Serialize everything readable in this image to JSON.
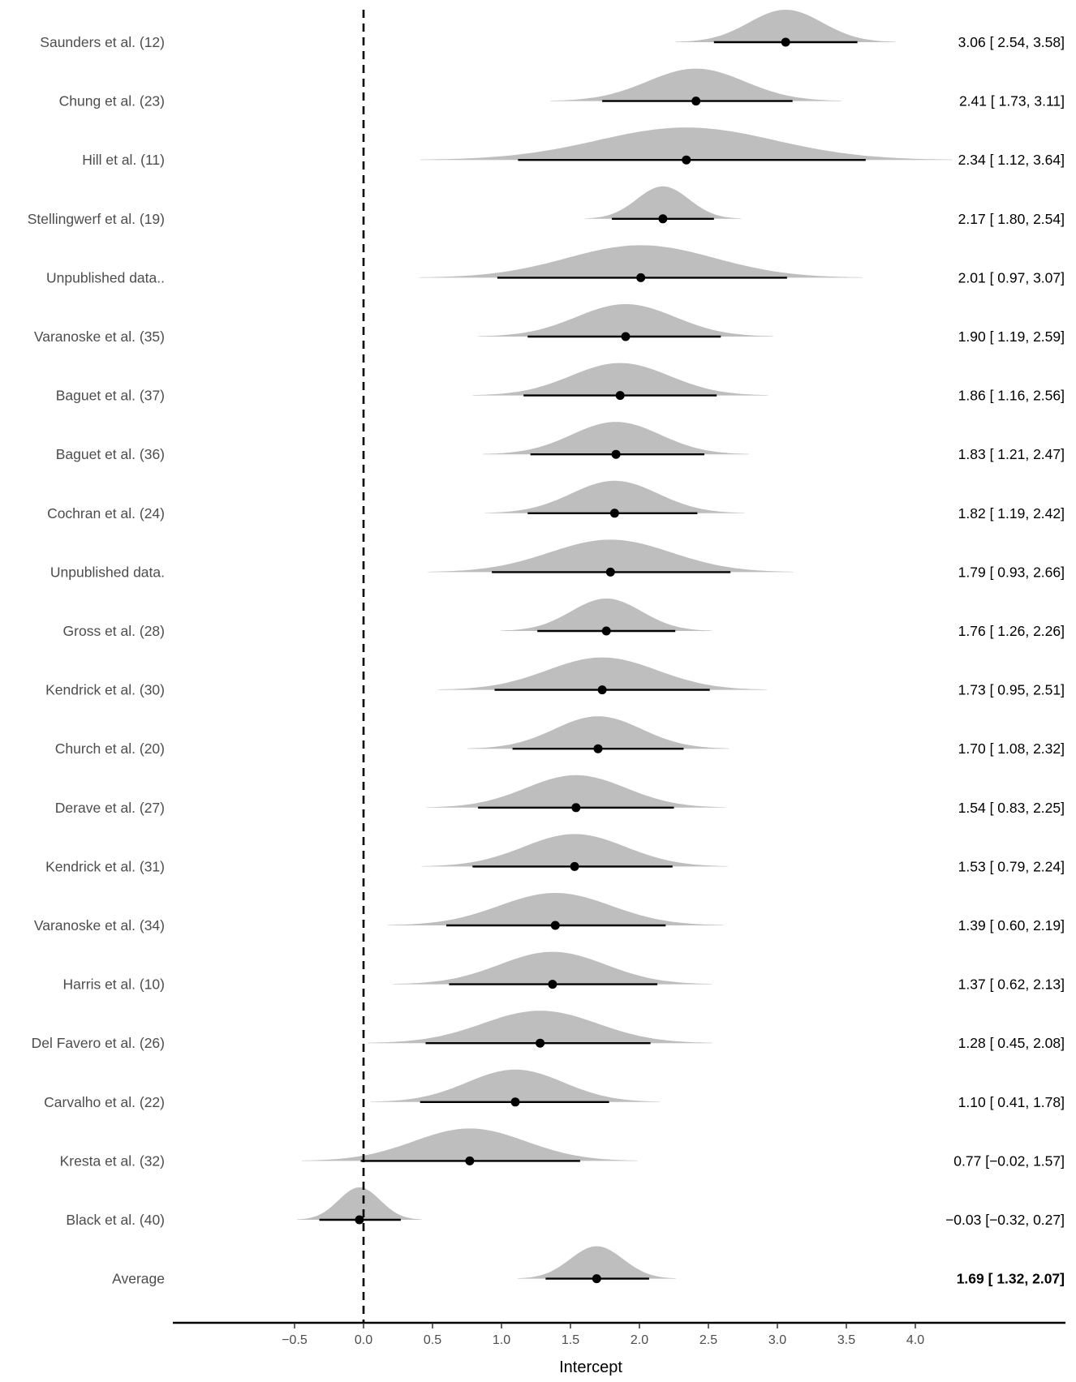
{
  "chart_data": {
    "type": "forest-density",
    "xlabel": "Intercept",
    "xlim": [
      -1.4,
      5.15
    ],
    "xticks": [
      -0.5,
      0.0,
      0.5,
      1.0,
      1.5,
      2.0,
      2.5,
      3.0,
      3.5,
      4.0
    ],
    "xtick_labels": [
      "−0.5",
      "0.0",
      "0.5",
      "1.0",
      "1.5",
      "2.0",
      "2.5",
      "3.0",
      "3.5",
      "4.0"
    ],
    "reference_line": 0,
    "colors": {
      "density": "#bebebe",
      "interval": "#000000",
      "reference": "#000000"
    },
    "rows": [
      {
        "study": "Saunders et al. (12)",
        "estimate": 3.06,
        "lower": 2.54,
        "upper": 3.58,
        "label": "3.06 [ 2.54, 3.58]"
      },
      {
        "study": "Chung et al. (23)",
        "estimate": 2.41,
        "lower": 1.73,
        "upper": 3.11,
        "label": "2.41 [ 1.73, 3.11]"
      },
      {
        "study": "Hill et al. (11)",
        "estimate": 2.34,
        "lower": 1.12,
        "upper": 3.64,
        "label": "2.34 [ 1.12, 3.64]"
      },
      {
        "study": "Stellingwerf et al. (19)",
        "estimate": 2.17,
        "lower": 1.8,
        "upper": 2.54,
        "label": "2.17 [ 1.80, 2.54]"
      },
      {
        "study": "Unpublished data..",
        "estimate": 2.01,
        "lower": 0.97,
        "upper": 3.07,
        "label": "2.01 [ 0.97, 3.07]"
      },
      {
        "study": "Varanoske et al. (35)",
        "estimate": 1.9,
        "lower": 1.19,
        "upper": 2.59,
        "label": "1.90 [ 1.19, 2.59]"
      },
      {
        "study": "Baguet et al. (37)",
        "estimate": 1.86,
        "lower": 1.16,
        "upper": 2.56,
        "label": "1.86 [ 1.16, 2.56]"
      },
      {
        "study": "Baguet et al. (36)",
        "estimate": 1.83,
        "lower": 1.21,
        "upper": 2.47,
        "label": "1.83 [ 1.21, 2.47]"
      },
      {
        "study": "Cochran et al. (24)",
        "estimate": 1.82,
        "lower": 1.19,
        "upper": 2.42,
        "label": "1.82 [ 1.19, 2.42]"
      },
      {
        "study": "Unpublished data.",
        "estimate": 1.79,
        "lower": 0.93,
        "upper": 2.66,
        "label": "1.79 [ 0.93, 2.66]"
      },
      {
        "study": "Gross et al. (28)",
        "estimate": 1.76,
        "lower": 1.26,
        "upper": 2.26,
        "label": "1.76 [ 1.26, 2.26]"
      },
      {
        "study": "Kendrick et al. (30)",
        "estimate": 1.73,
        "lower": 0.95,
        "upper": 2.51,
        "label": "1.73 [ 0.95, 2.51]"
      },
      {
        "study": "Church et al. (20)",
        "estimate": 1.7,
        "lower": 1.08,
        "upper": 2.32,
        "label": "1.70 [ 1.08, 2.32]"
      },
      {
        "study": "Derave et al. (27)",
        "estimate": 1.54,
        "lower": 0.83,
        "upper": 2.25,
        "label": "1.54 [ 0.83, 2.25]"
      },
      {
        "study": "Kendrick et al. (31)",
        "estimate": 1.53,
        "lower": 0.79,
        "upper": 2.24,
        "label": "1.53 [ 0.79, 2.24]"
      },
      {
        "study": "Varanoske et al. (34)",
        "estimate": 1.39,
        "lower": 0.6,
        "upper": 2.19,
        "label": "1.39 [ 0.60, 2.19]"
      },
      {
        "study": "Harris et al. (10)",
        "estimate": 1.37,
        "lower": 0.62,
        "upper": 2.13,
        "label": "1.37 [ 0.62, 2.13]"
      },
      {
        "study": "Del Favero et al. (26)",
        "estimate": 1.28,
        "lower": 0.45,
        "upper": 2.08,
        "label": "1.28 [ 0.45, 2.08]"
      },
      {
        "study": "Carvalho et al. (22)",
        "estimate": 1.1,
        "lower": 0.41,
        "upper": 1.78,
        "label": "1.10 [ 0.41, 1.78]"
      },
      {
        "study": "Kresta et al. (32)",
        "estimate": 0.77,
        "lower": -0.02,
        "upper": 1.57,
        "label": "0.77 [−0.02, 1.57]"
      },
      {
        "study": "Black et al. (40)",
        "estimate": -0.03,
        "lower": -0.32,
        "upper": 0.27,
        "label": "−0.03 [−0.32, 0.27]"
      },
      {
        "study": "Average",
        "estimate": 1.69,
        "lower": 1.32,
        "upper": 2.07,
        "label": "1.69 [ 1.32, 2.07]",
        "bold_label": true
      }
    ]
  }
}
